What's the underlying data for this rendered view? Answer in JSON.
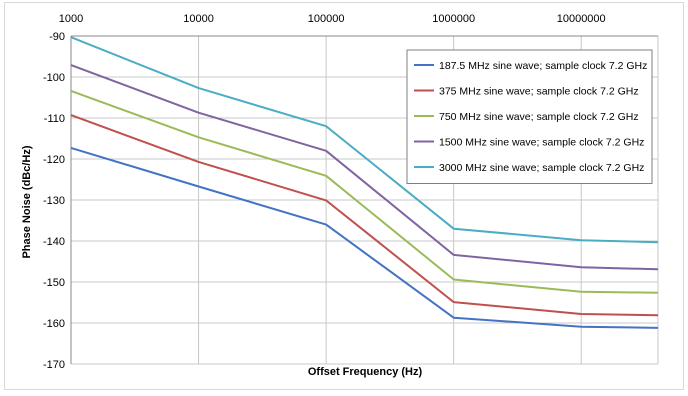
{
  "chart_data": {
    "type": "line",
    "xlabel": "Offset Frequency (Hz)",
    "ylabel": "Phase Noise (dBc/Hz)",
    "x_scale": "log",
    "xlim": [
      1000,
      40000000
    ],
    "ylim": [
      -170,
      -90
    ],
    "x_ticks": [
      1000,
      10000,
      100000,
      1000000,
      10000000
    ],
    "x_tick_labels": [
      "1000",
      "10000",
      "100000",
      "1000000",
      "10000000"
    ],
    "y_ticks": [
      -90,
      -100,
      -110,
      -120,
      -130,
      -140,
      -150,
      -160,
      -170
    ],
    "y_tick_labels": [
      "-90",
      "-100",
      "-110",
      "-120",
      "-130",
      "-140",
      "-150",
      "-160",
      "-170"
    ],
    "x_tick_position": "top",
    "grid": true,
    "legend_position": "top-right",
    "x": [
      1000,
      10000,
      100000,
      1000000,
      10000000,
      40000000
    ],
    "series": [
      {
        "name": "187.5 MHz sine wave; sample clock 7.2 GHz",
        "color": "#4472c4",
        "values": [
          -117.3,
          -126.7,
          -136,
          -158.7,
          -160.9,
          -161.2
        ]
      },
      {
        "name": "375 MHz sine wave; sample clock 7.2 GHz",
        "color": "#c0504d",
        "values": [
          -109.3,
          -120.7,
          -130.1,
          -154.9,
          -157.8,
          -158.1
        ]
      },
      {
        "name": "750 MHz sine wave; sample clock 7.2 GHz",
        "color": "#9bbb59",
        "values": [
          -103.4,
          -114.7,
          -124.1,
          -149.4,
          -152.4,
          -152.6
        ]
      },
      {
        "name": "1500 MHz sine wave; sample clock 7.2 GHz",
        "color": "#8064a2",
        "values": [
          -97.1,
          -108.7,
          -118,
          -143.4,
          -146.4,
          -146.9
        ]
      },
      {
        "name": "3000 MHz sine wave; sample clock 7.2 GHz",
        "color": "#4bacc6",
        "values": [
          -90.3,
          -102.7,
          -112,
          -137,
          -139.8,
          -140.3
        ]
      }
    ]
  }
}
